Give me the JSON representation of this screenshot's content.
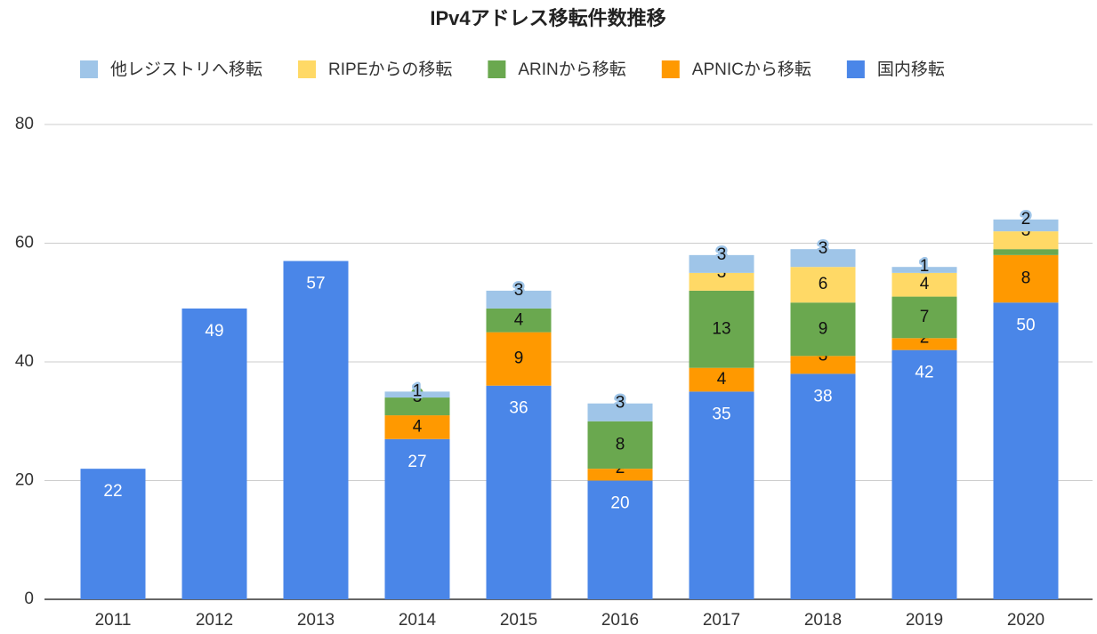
{
  "chart_data": {
    "type": "stacked_bar",
    "title": "IPv4アドレス移転件数推移",
    "categories": [
      "2011",
      "2012",
      "2013",
      "2014",
      "2015",
      "2016",
      "2017",
      "2018",
      "2019",
      "2020"
    ],
    "series": [
      {
        "name": "他レジストリへ移転",
        "color": "#9fc5e8",
        "values": [
          null,
          null,
          null,
          1,
          3,
          3,
          3,
          3,
          1,
          2
        ]
      },
      {
        "name": "RIPEからの移転",
        "color": "#ffd966",
        "values": [
          null,
          null,
          null,
          null,
          null,
          null,
          3,
          6,
          4,
          3
        ]
      },
      {
        "name": "ARINから移転",
        "color": "#6aa84f",
        "values": [
          null,
          null,
          null,
          3,
          4,
          8,
          13,
          9,
          7,
          1
        ],
        "value_labels": [
          null,
          null,
          null,
          "3",
          "4",
          "8",
          "13",
          "9",
          "7",
          null
        ]
      },
      {
        "name": "APNICから移転",
        "color": "#ff9900",
        "values": [
          null,
          null,
          null,
          4,
          9,
          2,
          4,
          3,
          2,
          8
        ]
      },
      {
        "name": "国内移転",
        "color": "#4a86e8",
        "values": [
          22,
          49,
          57,
          27,
          36,
          20,
          35,
          38,
          42,
          50
        ]
      }
    ],
    "ylim": [
      0,
      80
    ],
    "yticks": [
      0,
      20,
      40,
      60,
      80
    ],
    "grid": true,
    "legend": "top"
  }
}
